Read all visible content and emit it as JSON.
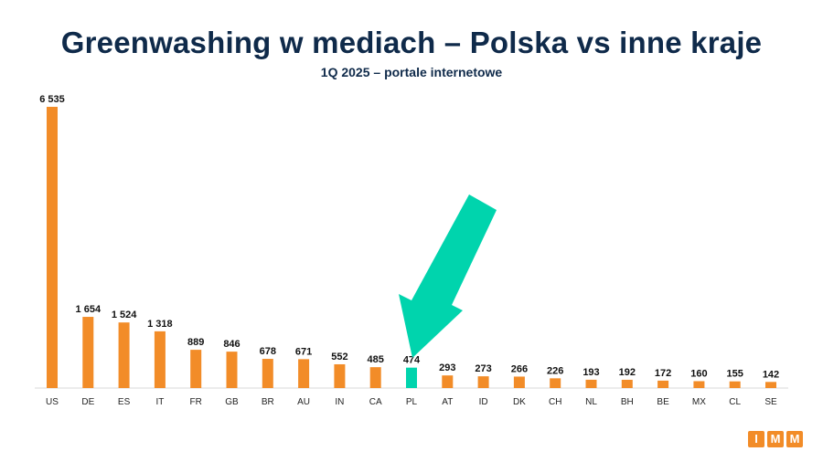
{
  "title": "Greenwashing w mediach – Polska vs inne kraje",
  "subtitle": "1Q 2025 – portale internetowe",
  "logo": {
    "letters": [
      "I",
      "M",
      "M"
    ],
    "color": "#f28c28"
  },
  "colors": {
    "bar": "#f28c28",
    "highlight": "#00d4ad",
    "text": "#0f2a4a",
    "arrow": "#00d4ad"
  },
  "chart_data": {
    "type": "bar",
    "categories": [
      "US",
      "DE",
      "ES",
      "IT",
      "FR",
      "GB",
      "BR",
      "AU",
      "IN",
      "CA",
      "PL",
      "AT",
      "ID",
      "DK",
      "CH",
      "NL",
      "BH",
      "BE",
      "MX",
      "CL",
      "SE"
    ],
    "values": [
      6535,
      1654,
      1524,
      1318,
      889,
      846,
      678,
      671,
      552,
      485,
      474,
      293,
      273,
      266,
      226,
      193,
      192,
      172,
      160,
      155,
      142
    ],
    "value_labels": [
      "6 535",
      "1 654",
      "1 524",
      "1 318",
      "889",
      "846",
      "678",
      "671",
      "552",
      "485",
      "474",
      "293",
      "273",
      "266",
      "226",
      "193",
      "192",
      "172",
      "160",
      "155",
      "142"
    ],
    "highlight": "PL",
    "annotation": "arrow-pointing-to-PL",
    "xlabel": "",
    "ylabel": "",
    "ylim": [
      0,
      6535
    ],
    "grid": false,
    "legend": "none"
  }
}
